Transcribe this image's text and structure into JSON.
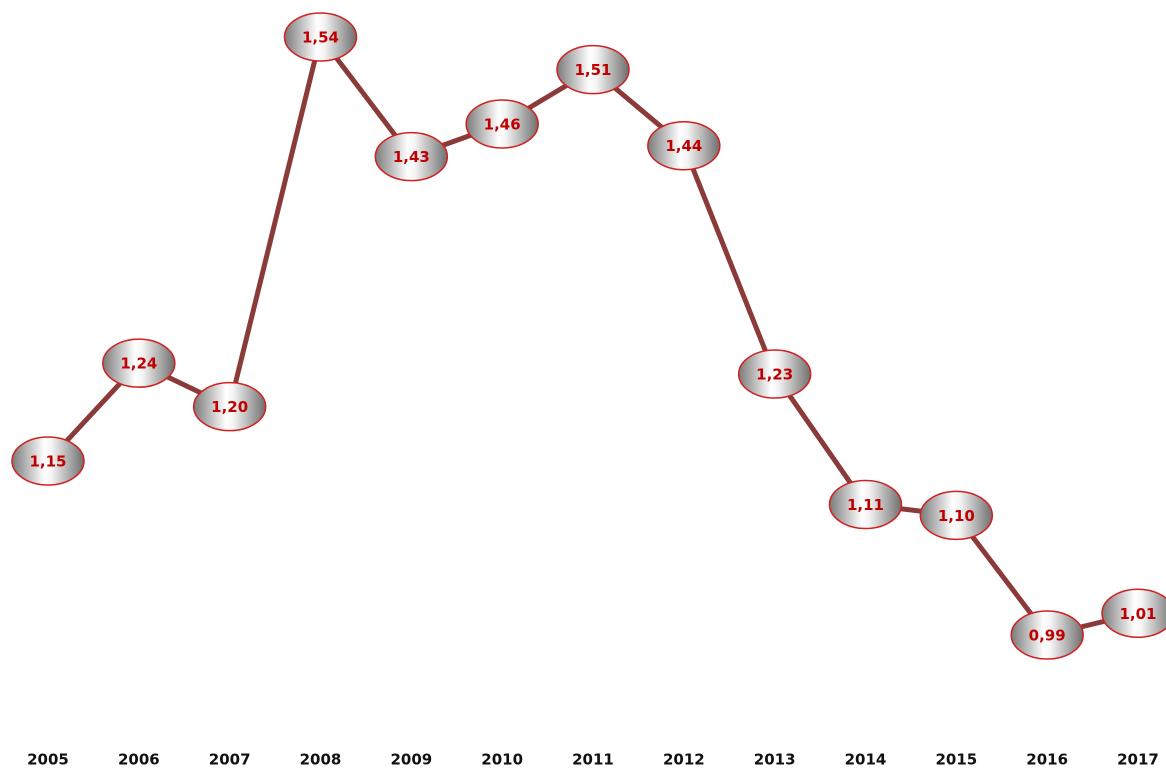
{
  "chart_data": {
    "type": "line",
    "categories": [
      "2005",
      "2006",
      "2007",
      "2008",
      "2009",
      "2010",
      "2011",
      "2012",
      "2013",
      "2014",
      "2015",
      "2016",
      "2017"
    ],
    "values": [
      1.15,
      1.24,
      1.2,
      1.54,
      1.43,
      1.46,
      1.51,
      1.44,
      1.23,
      1.11,
      1.1,
      0.99,
      1.01
    ],
    "value_labels": [
      "1,15",
      "1,24",
      "1,20",
      "1,54",
      "1,43",
      "1,46",
      "1,51",
      "1,44",
      "1,23",
      "1,11",
      "1,10",
      "0,99",
      "1,01"
    ],
    "color": "#8b3a3a",
    "marker_edge_color": "#d02020",
    "label_color": "#c00000"
  }
}
